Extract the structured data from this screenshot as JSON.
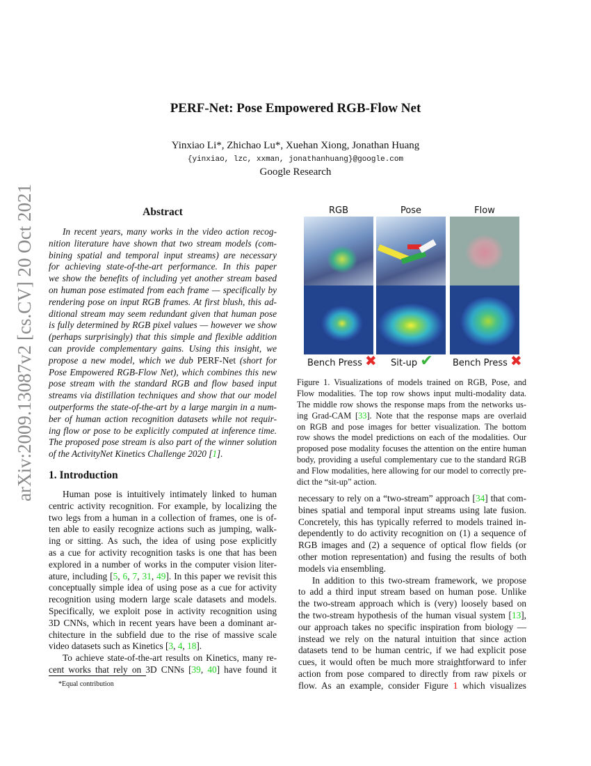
{
  "header": {
    "title": "PERF-Net: Pose Empowered RGB-Flow Net",
    "authors": "Yinxiao Li*, Zhichao Lu*, Xuehan Xiong, Jonathan Huang",
    "emails": "{yinxiao, lzc, xxman, jonathanhuang}@google.com",
    "affiliation": "Google Research"
  },
  "arxiv_stamp": "arXiv:2009.13087v2  [cs.CV]  20 Oct 2021",
  "abstract": {
    "heading": "Abstract",
    "paragraphs": [
      {
        "lines": [
          [
            "In recent years, many works in the video action recog-"
          ],
          [
            "nition literature have shown that two stream models (com-"
          ],
          [
            "bining spatial and temporal input streams) are necessary"
          ],
          [
            "for achieving state-of-the-art performance.  In this paper"
          ],
          [
            "we show the benefits of including yet another stream based"
          ],
          [
            "on human pose estimated from each frame — specifically by"
          ],
          [
            "rendering pose on input RGB frames. At first blush, this ad-"
          ],
          [
            "ditional stream may seem redundant given that human pose"
          ],
          [
            "is fully determined by RGB pixel values — however we show"
          ],
          [
            "(perhaps surprisingly) that this simple and flexible addition"
          ],
          [
            "can provide complementary gains.  Using this insight, we"
          ],
          [
            "propose a new model, which we dub ",
            {
              "n": "PERF-Net"
            },
            " (short for"
          ],
          [
            "Pose Empowered RGB-Flow Net), which combines this new"
          ],
          [
            "pose stream with the standard RGB and flow based input"
          ],
          [
            "streams via distillation techniques and show that our model"
          ],
          [
            "outperforms the state-of-the-art by a large margin in a num-"
          ],
          [
            "ber of human action recognition datasets while not requir-"
          ],
          [
            "ing flow or pose to be explicitly computed at inference time."
          ],
          [
            "The proposed pose stream is also part of the winner solution"
          ],
          [
            "of the ActivityNet Kinetics Challenge 2020 [",
            {
              "c": "1"
            },
            "]."
          ]
        ]
      }
    ]
  },
  "introduction": {
    "heading": "1. Introduction",
    "left_paragraphs": [
      {
        "lines": [
          [
            "Human pose is intuitively intimately linked to human"
          ],
          [
            "centric activity recognition. For example, by localizing the"
          ],
          [
            "two legs from a human in a collection of frames, one is of-"
          ],
          [
            "ten able to easily recognize actions such as jumping, walk-"
          ],
          [
            "ing or sitting.  As such, the idea of using pose explicitly"
          ],
          [
            "as a cue for activity recognition tasks is one that has been"
          ],
          [
            "explored in a number of works in the computer vision liter-"
          ],
          [
            "ature, including [",
            {
              "c": "5"
            },
            ", ",
            {
              "c": "6"
            },
            ", ",
            {
              "c": "7"
            },
            ", ",
            {
              "c": "31"
            },
            ", ",
            {
              "c": "49"
            },
            "]. In this paper we revisit this"
          ],
          [
            "conceptually simple idea of using pose as a cue for activity"
          ],
          [
            "recognition using modern large scale datasets and models."
          ],
          [
            "Specifically, we exploit pose in activity recognition using"
          ],
          [
            "3D CNNs, which in recent years have been a dominant ar-"
          ],
          [
            "chitecture in the subfield due to the rise of massive scale"
          ],
          [
            "video datasets such as Kinetics [",
            {
              "c": "3"
            },
            ", ",
            {
              "c": "4"
            },
            ", ",
            {
              "c": "18"
            },
            "]."
          ]
        ]
      },
      {
        "lines": [
          [
            "To achieve state-of-the-art results on Kinetics, many re-"
          ],
          [
            "cent works that rely on 3D CNNs [",
            {
              "c": "39"
            },
            ", ",
            {
              "c": "40"
            },
            "] have found it"
          ]
        ],
        "open": true
      }
    ],
    "right_paragraphs": [
      {
        "lines": [
          [
            "necessary to rely on a “two-stream” approach [",
            {
              "c": "34"
            },
            "] that com-"
          ],
          [
            "bines spatial and temporal input streams using late fusion."
          ],
          [
            "Concretely, this has typically referred to models trained in-"
          ],
          [
            "dependently to do activity recognition on (1) a sequence of"
          ],
          [
            "RGB images and (2) a sequence of optical flow fields (or"
          ],
          [
            "other motion representation) and fusing the results of both"
          ],
          [
            "models via ensembling."
          ]
        ],
        "continued": true
      },
      {
        "lines": [
          [
            "In addition to this two-stream framework, we propose"
          ],
          [
            "to add a third input stream based on human pose.  Unlike"
          ],
          [
            "the two-stream approach which is (very) loosely based on"
          ],
          [
            "the two-stream hypothesis of the human visual system [",
            {
              "c": "13"
            },
            "],"
          ],
          [
            "our approach takes no specific inspiration from biology —"
          ],
          [
            "instead we rely on the natural intuition that since action"
          ],
          [
            "datasets tend to be human centric, if we had explicit pose"
          ],
          [
            "cues, it would often be much more straightforward to infer"
          ],
          [
            "action from pose compared to directly from raw pixels or"
          ],
          [
            "flow.  As an example, consider Figure ",
            {
              "r": "1"
            },
            " which visualizes"
          ]
        ],
        "open": true
      }
    ]
  },
  "figure": {
    "columns": [
      {
        "label": "RGB",
        "prediction": "Bench Press",
        "correct": false
      },
      {
        "label": "Pose",
        "prediction": "Sit-up",
        "correct": true
      },
      {
        "label": "Flow",
        "prediction": "Bench Press",
        "correct": false
      }
    ],
    "colors": {
      "correct": "#3bb43b",
      "wrong": "#e52a2a"
    },
    "caption_lines": [
      [
        "Figure 1. Visualizations of models trained on RGB, Pose, and"
      ],
      [
        "Flow modalities.  The top row shows input multi-modality data."
      ],
      [
        "The middle row shows the response maps from the networks us-"
      ],
      [
        "ing Grad-CAM [",
        {
          "c": "33"
        },
        "].  Note that the response maps are overlaid"
      ],
      [
        "on RGB and pose images for better visualization.  The bottom"
      ],
      [
        "row shows the model predictions on each of the modalities.  Our"
      ],
      [
        "proposed pose modality focuses the attention on the entire human"
      ],
      [
        "body, providing a useful complementary cue to the standard RGB"
      ],
      [
        "and Flow modalities, here allowing for our model to correctly pre-"
      ],
      [
        "dict the “sit-up” action."
      ]
    ]
  },
  "footnote": "*Equal contribution"
}
